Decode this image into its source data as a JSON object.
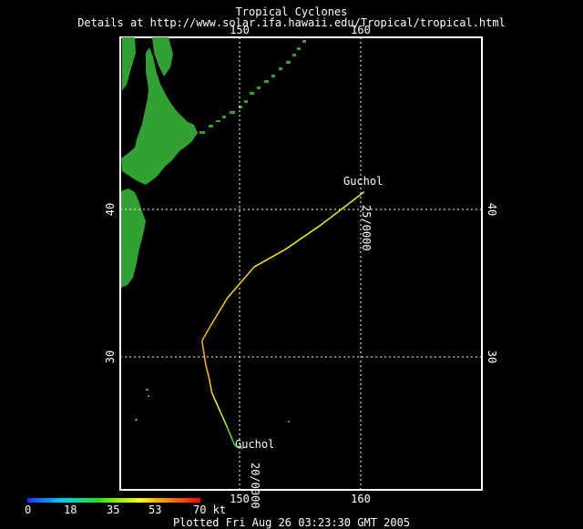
{
  "title": "Tropical Cyclones",
  "subtitle": "Details at http://www.solar.ifa.hawaii.edu/Tropical/tropical.html",
  "map": {
    "lon_ticks": [
      "150",
      "160"
    ],
    "lat_ticks": [
      "40",
      "30"
    ],
    "storm_labels": [
      {
        "text": "Guchol"
      },
      {
        "text": "Guchol"
      }
    ],
    "time_labels": [
      {
        "text": "25/0000"
      },
      {
        "text": "20/0000"
      }
    ],
    "colors": {
      "background": "#000000",
      "land": "#33a033",
      "grid": "#ffffff",
      "frame": "#ffffff"
    }
  },
  "colorbar": {
    "labels": [
      "0",
      "18",
      "35",
      "53",
      "70 kt"
    ],
    "colors": [
      "#2030ff",
      "#00d0ff",
      "#20e020",
      "#ffff00",
      "#ff8000",
      "#ff0000"
    ]
  },
  "footer": "Plotted Fri Aug 26 03:23:30 GMT 2005",
  "chart_data": {
    "type": "map",
    "units": "kt",
    "storm": "Guchol",
    "track": [
      {
        "lon": 150.3,
        "lat": 23.8,
        "kt": 20
      },
      {
        "lon": 149.6,
        "lat": 24.0,
        "kt": 25
      },
      {
        "lon": 149.4,
        "lat": 24.4,
        "kt": 30
      },
      {
        "lon": 149.0,
        "lat": 25.2,
        "kt": 35
      },
      {
        "lon": 148.4,
        "lat": 26.3,
        "kt": 40
      },
      {
        "lon": 147.7,
        "lat": 27.6,
        "kt": 45
      },
      {
        "lon": 147.5,
        "lat": 28.5,
        "kt": 50
      },
      {
        "lon": 147.2,
        "lat": 29.5,
        "kt": 50
      },
      {
        "lon": 146.9,
        "lat": 31.1,
        "kt": 50
      },
      {
        "lon": 147.6,
        "lat": 32.1,
        "kt": 50
      },
      {
        "lon": 149.0,
        "lat": 34.0,
        "kt": 48
      },
      {
        "lon": 151.2,
        "lat": 36.1,
        "kt": 45
      },
      {
        "lon": 153.8,
        "lat": 37.3,
        "kt": 42
      },
      {
        "lon": 156.8,
        "lat": 39.0,
        "kt": 40
      },
      {
        "lon": 160.3,
        "lat": 41.2,
        "kt": 40
      }
    ]
  }
}
